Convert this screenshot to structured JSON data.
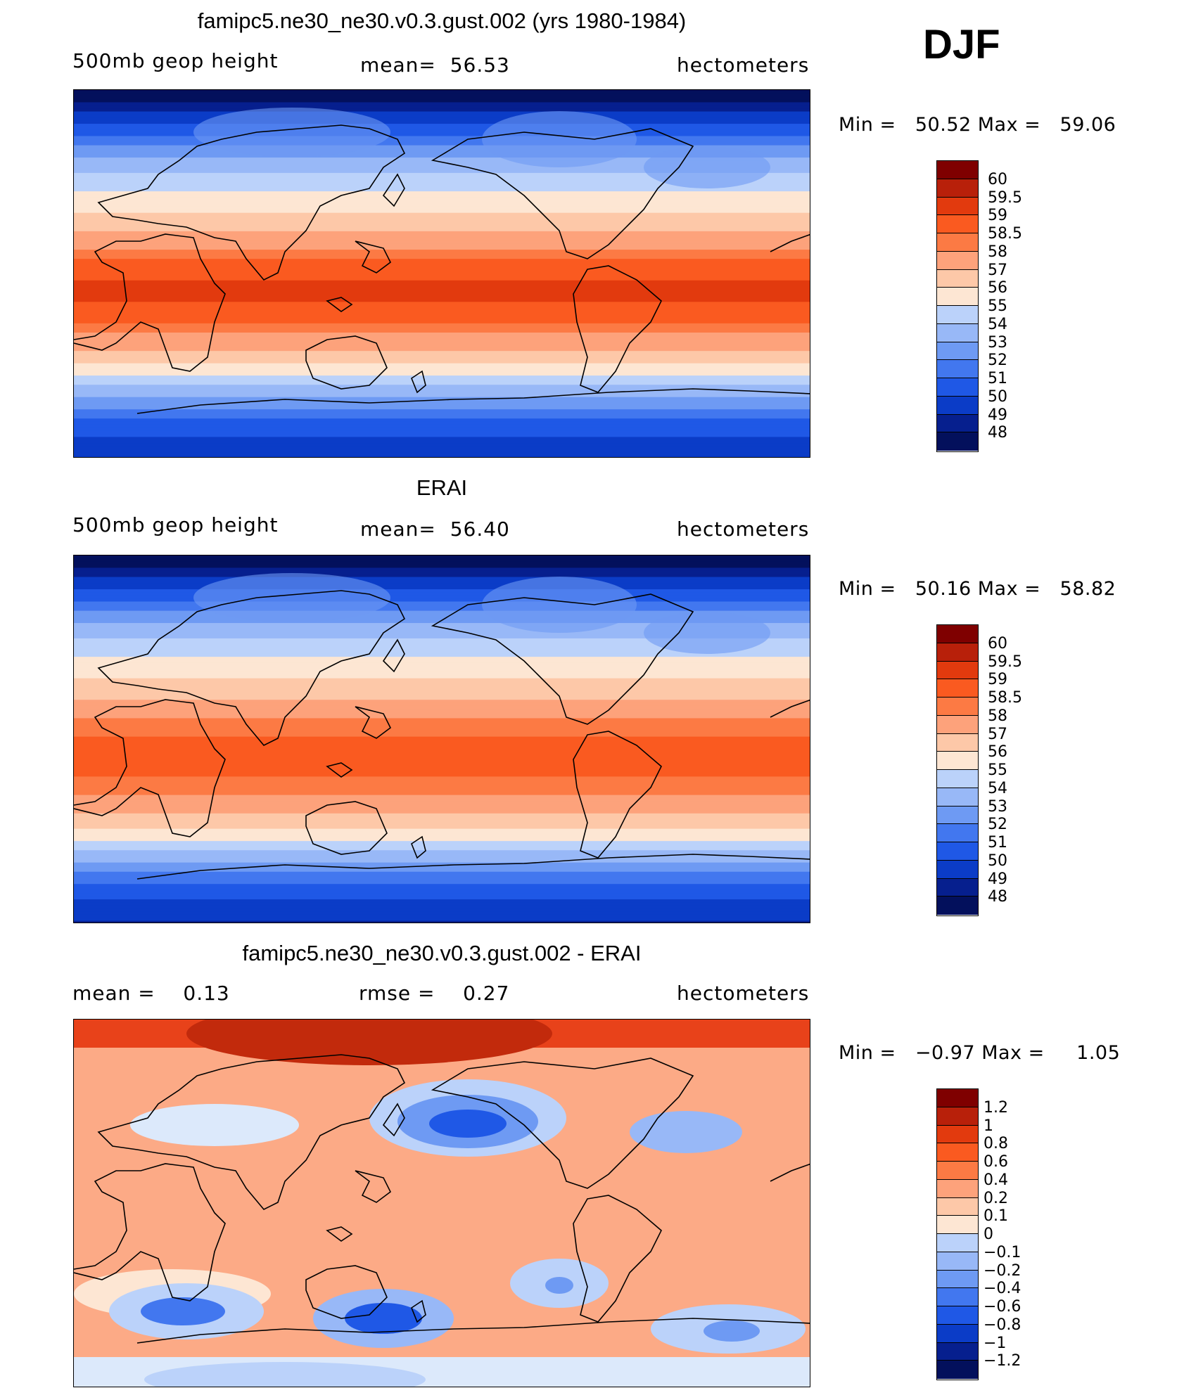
{
  "season": "DJF",
  "units": "hectometers",
  "colors": {
    "levels16": [
      "#7f0000",
      "#b8200a",
      "#e23a0e",
      "#fa5a20",
      "#fc7a44",
      "#fda27b",
      "#fdc8a8",
      "#fde6d3",
      "#dce9fb",
      "#bbd2fa",
      "#98b8f7",
      "#6e9af3",
      "#4277ef",
      "#1f58e6",
      "#0b3cc7",
      "#061f8e",
      "#03105c"
    ],
    "diff17": [
      "#7f0000",
      "#b8200a",
      "#e23a0e",
      "#fa5a20",
      "#fc7a44",
      "#fda27b",
      "#fdc8a8",
      "#fde6d3",
      "#dce9fb",
      "#bbd2fa",
      "#98b8f7",
      "#6e9af3",
      "#4277ef",
      "#1f58e6",
      "#0b3cc7",
      "#061f8e",
      "#03105c"
    ]
  },
  "chart_data": [
    {
      "type": "heatmap",
      "panel": "model",
      "title": "famipc5.ne30_ne30.v0.3.gust.002 (yrs 1980-1984)",
      "variable": "500mb geop height",
      "stat1_label": "mean=",
      "stat1_value": "56.53",
      "units": "hectometers",
      "min_label": "Min =",
      "min": "50.52",
      "max_label": "Max =",
      "max": "59.06",
      "levels": [
        "60",
        "59.5",
        "59",
        "58.5",
        "58",
        "57",
        "56",
        "55",
        "54",
        "53",
        "52",
        "51",
        "50",
        "49",
        "48"
      ],
      "field_values": [
        47,
        50,
        53,
        55,
        56.5,
        58.5,
        59.2,
        58.5,
        56.5,
        53.5,
        50.5,
        49
      ]
    },
    {
      "type": "heatmap",
      "panel": "obs",
      "title": "ERAI",
      "variable": "500mb geop height",
      "stat1_label": "mean=",
      "stat1_value": "56.40",
      "units": "hectometers",
      "min_label": "Min =",
      "min": "50.16",
      "max_label": "Max =",
      "max": "58.82",
      "levels": [
        "60",
        "59.5",
        "59",
        "58.5",
        "58",
        "57",
        "56",
        "55",
        "54",
        "53",
        "52",
        "51",
        "50",
        "49",
        "48"
      ],
      "field_values": [
        47,
        50,
        53,
        55,
        56.5,
        58.3,
        58.8,
        58.3,
        56.4,
        53.5,
        50.4,
        48.8
      ]
    },
    {
      "type": "heatmap",
      "panel": "difference",
      "title": "famipc5.ne30_ne30.v0.3.gust.002 - ERAI",
      "stat1_label": "mean =",
      "stat1_value": "0.13",
      "stat2_label": "rmse =",
      "stat2_value": "0.27",
      "units": "hectometers",
      "min_label": "Min =",
      "min": "−0.97",
      "max_label": "Max =",
      "max": "1.05",
      "levels": [
        "1.2",
        "1",
        "0.8",
        "0.6",
        "0.4",
        "0.2",
        "0.1",
        "0",
        "−0.1",
        "−0.2",
        "−0.4",
        "−0.6",
        "−0.8",
        "−1",
        "−1.2"
      ]
    }
  ]
}
